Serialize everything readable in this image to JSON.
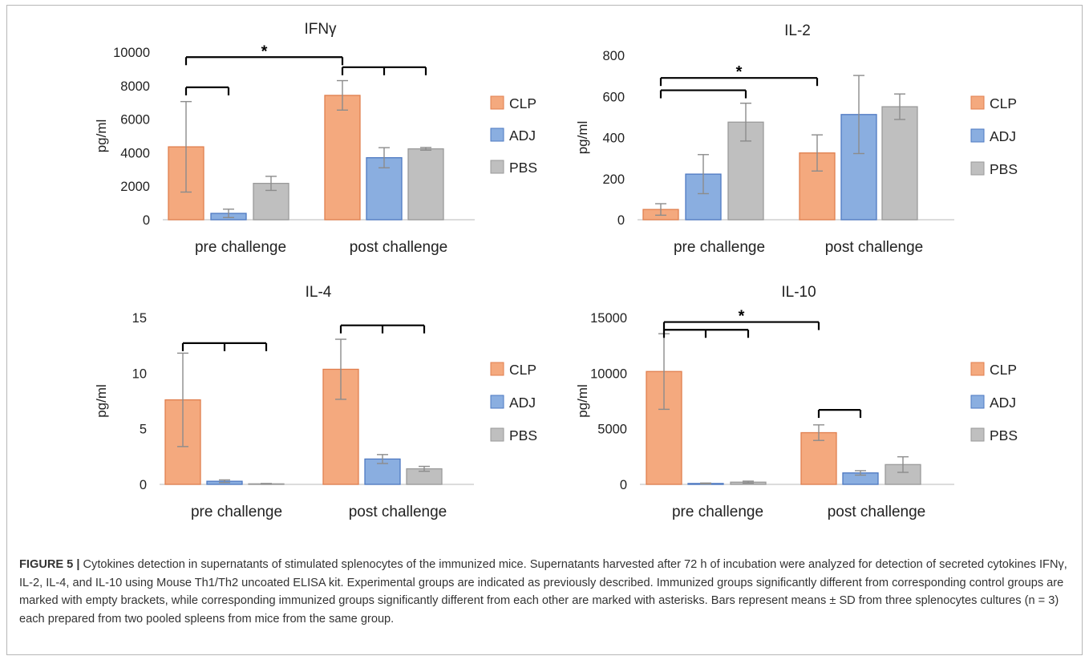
{
  "charts": [
    {
      "type": "bar",
      "title": "IFNγ",
      "ylabel": "pg/ml",
      "ylim": [
        0,
        10000
      ],
      "yticks": [
        "0",
        "2000",
        "4000",
        "6000",
        "8000",
        "10000"
      ],
      "categories": [
        "pre challenge",
        "post challenge"
      ],
      "series": [
        {
          "name": "CLP",
          "values": [
            4350,
            7420
          ],
          "errors": [
            2700,
            880
          ]
        },
        {
          "name": "ADJ",
          "values": [
            380,
            3700
          ],
          "errors": [
            250,
            600
          ]
        },
        {
          "name": "PBS",
          "values": [
            2170,
            4230
          ],
          "errors": [
            420,
            80
          ]
        }
      ],
      "brackets": [
        {
          "from": "pre challenge:CLP",
          "to": "pre challenge:ADJ",
          "level": 7900,
          "mid": null,
          "star": false
        },
        {
          "from": "post challenge:CLP",
          "to": "post challenge:PBS",
          "level": 9100,
          "mid": "post challenge:ADJ",
          "star": false
        },
        {
          "from": "pre challenge:CLP",
          "to": "post challenge:CLP",
          "level": 9700,
          "mid": null,
          "star": true
        }
      ],
      "legend_position": "right"
    },
    {
      "type": "bar",
      "title": "IL-2",
      "ylabel": "pg/ml",
      "ylim": [
        0,
        800
      ],
      "yticks": [
        "0",
        "200",
        "400",
        "600",
        "800"
      ],
      "categories": [
        "pre challenge",
        "post challenge"
      ],
      "series": [
        {
          "name": "CLP",
          "values": [
            50,
            325
          ],
          "errors": [
            28,
            88
          ]
        },
        {
          "name": "ADJ",
          "values": [
            222,
            512
          ],
          "errors": [
            95,
            190
          ]
        },
        {
          "name": "PBS",
          "values": [
            475,
            550
          ],
          "errors": [
            92,
            62
          ]
        }
      ],
      "brackets": [
        {
          "from": "pre challenge:CLP",
          "to": "pre challenge:PBS",
          "level": 630,
          "mid": null,
          "star": false
        },
        {
          "from": "pre challenge:CLP",
          "to": "post challenge:CLP",
          "level": 690,
          "mid": null,
          "star": true
        }
      ],
      "legend_position": "right"
    },
    {
      "type": "bar",
      "title": "IL-4",
      "ylabel": "pg/ml",
      "ylim": [
        0,
        15
      ],
      "yticks": [
        "0",
        "5",
        "10",
        "15"
      ],
      "categories": [
        "pre challenge",
        "post challenge"
      ],
      "series": [
        {
          "name": "CLP",
          "values": [
            7.6,
            10.35
          ],
          "errors": [
            4.2,
            2.7
          ]
        },
        {
          "name": "ADJ",
          "values": [
            0.28,
            2.28
          ],
          "errors": [
            0.12,
            0.4
          ]
        },
        {
          "name": "PBS",
          "values": [
            0.05,
            1.4
          ],
          "errors": [
            0.03,
            0.22
          ]
        }
      ],
      "brackets": [
        {
          "from": "pre challenge:CLP",
          "to": "pre challenge:PBS",
          "level": 12.7,
          "mid": "pre challenge:ADJ",
          "star": false
        },
        {
          "from": "post challenge:CLP",
          "to": "post challenge:PBS",
          "level": 14.3,
          "mid": "post challenge:ADJ",
          "star": false
        }
      ],
      "legend_position": "right"
    },
    {
      "type": "bar",
      "title": "IL-10",
      "ylabel": "pg/ml",
      "ylim": [
        0,
        15000
      ],
      "yticks": [
        "0",
        "5000",
        "10000",
        "15000"
      ],
      "categories": [
        "pre challenge",
        "post challenge"
      ],
      "series": [
        {
          "name": "CLP",
          "values": [
            10150,
            4650
          ],
          "errors": [
            3400,
            700
          ]
        },
        {
          "name": "ADJ",
          "values": [
            80,
            1030
          ],
          "errors": [
            40,
            200
          ]
        },
        {
          "name": "PBS",
          "values": [
            200,
            1780
          ],
          "errors": [
            90,
            700
          ]
        }
      ],
      "brackets": [
        {
          "from": "pre challenge:CLP",
          "to": "pre challenge:PBS",
          "level": 13900,
          "mid": "pre challenge:ADJ",
          "star": false
        },
        {
          "from": "pre challenge:CLP",
          "to": "post challenge:CLP",
          "level": 14600,
          "mid": null,
          "star": true
        },
        {
          "from": "post challenge:CLP",
          "to": "post challenge:ADJ",
          "level": 6700,
          "mid": null,
          "star": false
        }
      ],
      "legend_position": "right"
    }
  ],
  "colors": {
    "CLP": "#f4a97e",
    "ADJ": "#8aaee0",
    "PBS": "#bfbfbf",
    "CLP_edge": "#e07f4f",
    "ADJ_edge": "#4e79c2",
    "PBS_edge": "#9a9a9a",
    "error_bar": "#8c8c8c",
    "bracket": "#000000",
    "caption_text": "#333333"
  },
  "caption": {
    "label": "FIGURE 5 |",
    "text": " Cytokines detection in supernatants of stimulated splenocytes of the immunized mice. Supernatants harvested after 72 h of incubation were analyzed for detection of secreted cytokines IFNγ, IL-2, IL-4, and IL-10 using Mouse Th1/Th2 uncoated ELISA kit. Experimental groups are indicated as previously described. Immunized groups significantly different from corresponding control groups are marked with empty brackets, while corresponding immunized groups significantly different from each other are marked with asterisks. Bars represent means ± SD from three splenocytes cultures (n = 3) each prepared from two pooled spleens from mice from the same group."
  }
}
